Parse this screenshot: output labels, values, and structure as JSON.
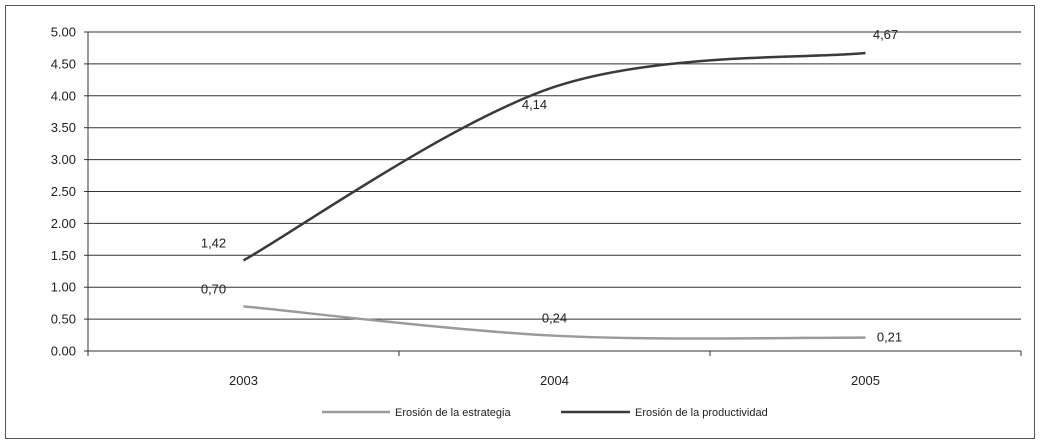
{
  "chart_data": {
    "type": "line",
    "title": "",
    "xlabel": "",
    "ylabel": "",
    "categories": [
      "2003",
      "2004",
      "2005"
    ],
    "ylim": [
      0,
      5
    ],
    "yticks": [
      "0.00",
      "0.50",
      "1.00",
      "1.50",
      "2.00",
      "2.50",
      "3.00",
      "3.50",
      "4.00",
      "4.50",
      "5.00"
    ],
    "grid": true,
    "legend_position": "bottom",
    "series": [
      {
        "name": "Erosión de la estrategia",
        "values": [
          0.7,
          0.24,
          0.21
        ],
        "labels": [
          "0,70",
          "0,24",
          "0,21"
        ],
        "color": "#9a9a9a"
      },
      {
        "name": "Erosión de la productividad",
        "values": [
          1.42,
          4.14,
          4.67
        ],
        "labels": [
          "1,42",
          "4,14",
          "4,67"
        ],
        "color": "#3a3a3a"
      }
    ]
  }
}
